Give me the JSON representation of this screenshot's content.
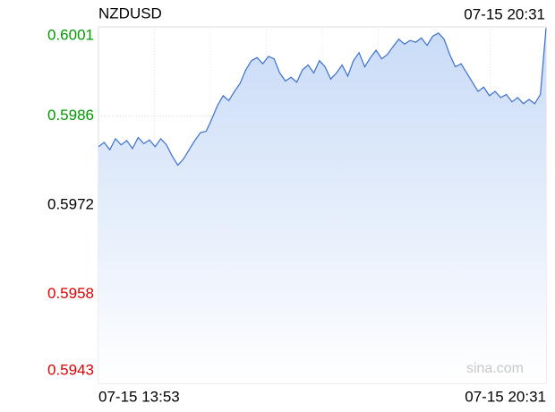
{
  "chart_data": {
    "type": "line",
    "title": "NZDUSD",
    "time": "07-15 20:31",
    "watermark": "sina.com",
    "categories": [
      "07-15 13:53",
      null,
      null,
      null,
      null,
      null,
      null,
      null,
      null,
      null,
      null,
      null,
      null,
      null,
      null,
      null,
      null,
      null,
      null,
      null,
      null,
      null,
      null,
      null,
      null,
      null,
      null,
      null,
      null,
      null,
      null,
      null,
      null,
      null,
      null,
      null,
      null,
      null,
      null,
      null,
      null,
      null,
      null,
      null,
      null,
      null,
      null,
      null,
      null,
      null,
      null,
      null,
      null,
      null,
      null,
      null,
      null,
      null,
      null,
      null,
      null,
      null,
      null,
      null,
      null,
      null,
      null,
      null,
      null,
      null,
      null,
      null,
      null,
      null,
      null,
      null,
      null,
      null,
      null,
      "07-15 20:31"
    ],
    "values": [
      0.59815,
      0.59822,
      0.5981,
      0.59828,
      0.59818,
      0.59825,
      0.59812,
      0.5983,
      0.5982,
      0.59826,
      0.59815,
      0.59828,
      0.59818,
      0.598,
      0.59785,
      0.59795,
      0.5981,
      0.59825,
      0.59838,
      0.5984,
      0.5986,
      0.59882,
      0.59898,
      0.5989,
      0.59905,
      0.59918,
      0.5994,
      0.59955,
      0.5996,
      0.5995,
      0.59962,
      0.59958,
      0.59935,
      0.59922,
      0.59928,
      0.5992,
      0.5994,
      0.59948,
      0.59935,
      0.59955,
      0.59945,
      0.59925,
      0.59935,
      0.59948,
      0.5993,
      0.59955,
      0.59968,
      0.59945,
      0.5996,
      0.59972,
      0.59958,
      0.59965,
      0.59978,
      0.5999,
      0.59982,
      0.59988,
      0.59985,
      0.59992,
      0.5998,
      0.59995,
      0.6,
      0.5999,
      0.59965,
      0.59945,
      0.5995,
      0.59935,
      0.5992,
      0.59905,
      0.59912,
      0.59898,
      0.59905,
      0.59895,
      0.599,
      0.59888,
      0.59895,
      0.59885,
      0.59892,
      0.59885,
      0.599,
      0.60008
    ],
    "color": "#3a6fcf",
    "fill_color": "#c9dbf7",
    "ylim": [
      0.5943,
      0.6001
    ],
    "yticks": [
      0.5943,
      {
        "value": 0.59575,
        "label": "0.5958"
      },
      0.5972,
      {
        "value": 0.59865,
        "label": "0.5986"
      },
      0.6001
    ],
    "up_color": "#009900",
    "down_color": "#dd0000",
    "flat_color": "#000000",
    "grid": true
  }
}
